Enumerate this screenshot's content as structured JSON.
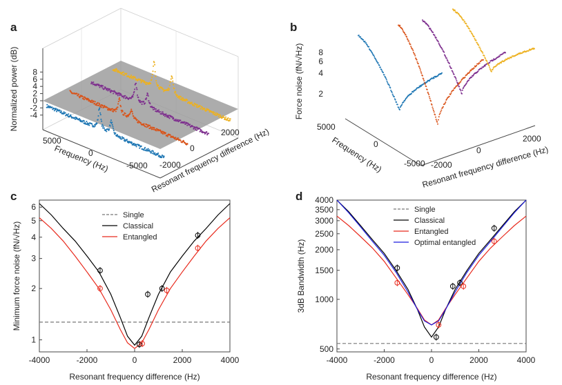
{
  "panels": {
    "a": {
      "letter": "a",
      "ylabel": "Normalized power (dB)",
      "yticks": [
        "8",
        "6",
        "4",
        "2",
        "0",
        "-2",
        "-4"
      ],
      "freq_label": "Frequency (Hz)",
      "freq_ticks": [
        "5000",
        "0",
        "-5000"
      ],
      "res_label": "Resonant frequency difference (Hz)",
      "res_ticks": [
        "2000",
        "0",
        "-2000"
      ]
    },
    "b": {
      "letter": "b",
      "ylabel": "Force noise (fN/√Hz)",
      "yticks": [
        "8",
        "6",
        "4",
        "2"
      ],
      "freq_label": "Frequency (Hz)",
      "freq_ticks": [
        "5000",
        "0",
        "-5000"
      ],
      "res_label": "Resonant frequency difference (Hz)",
      "res_ticks": [
        "2000",
        "0",
        "-2000"
      ]
    },
    "c": {
      "letter": "c"
    },
    "d": {
      "letter": "d"
    }
  },
  "colors": {
    "blue": "#1f77b4",
    "orange": "#d95319",
    "purple": "#7e2f8e",
    "gold": "#edb120",
    "black": "#000000",
    "red": "#e8291c",
    "navy": "#1a1adf",
    "gray": "#777777",
    "plane": "#9a9a9a"
  },
  "chart_data": [
    {
      "id": "c",
      "type": "line",
      "xlabel": "Resonant frequency difference (Hz)",
      "ylabel": "Minimum force noise (fN/√Hz)",
      "xlim": [
        -4000,
        4000
      ],
      "ylim": [
        0.85,
        6.6
      ],
      "yscale": "log",
      "xticks": [
        -4000,
        -2000,
        0,
        2000,
        4000
      ],
      "yticks": [
        1,
        2,
        3,
        4,
        5,
        6
      ],
      "legend": [
        "Single",
        "Classical",
        "Entangled"
      ],
      "series": [
        {
          "name": "Single",
          "style": "dashed",
          "x": [
            -4000,
            4000
          ],
          "y": [
            1.27,
            1.27
          ]
        },
        {
          "name": "Classical",
          "x": [
            -4000,
            -3500,
            -3000,
            -2500,
            -2000,
            -1500,
            -1000,
            -600,
            -300,
            0,
            300,
            600,
            1000,
            1500,
            2000,
            2500,
            3000,
            3500,
            4000
          ],
          "y": [
            6.3,
            5.4,
            4.5,
            3.8,
            3.1,
            2.5,
            1.85,
            1.35,
            1.05,
            0.93,
            1.05,
            1.35,
            1.85,
            2.5,
            3.1,
            3.8,
            4.5,
            5.4,
            6.3
          ]
        },
        {
          "name": "Entangled",
          "x": [
            -4000,
            -3500,
            -3000,
            -2500,
            -2000,
            -1500,
            -1000,
            -600,
            -300,
            0,
            300,
            600,
            1000,
            1500,
            2000,
            2500,
            3000,
            3500,
            4000
          ],
          "y": [
            5.2,
            4.5,
            3.8,
            3.1,
            2.5,
            2.0,
            1.5,
            1.15,
            0.96,
            0.89,
            0.96,
            1.15,
            1.5,
            2.0,
            2.5,
            3.1,
            3.8,
            4.5,
            5.2
          ]
        }
      ],
      "points": [
        {
          "name": "Classical",
          "x": [
            -1450,
            200,
            550,
            1150,
            2650
          ],
          "y": [
            2.55,
            0.94,
            1.85,
            2.0,
            4.1
          ]
        },
        {
          "name": "Entangled",
          "x": [
            -1450,
            320,
            1350,
            2650
          ],
          "y": [
            2.0,
            0.95,
            1.95,
            3.45
          ]
        }
      ]
    },
    {
      "id": "d",
      "type": "line",
      "xlabel": "Resonant frequency difference (Hz)",
      "ylabel": "3dB Bandwidth (Hz)",
      "xlim": [
        -4000,
        4000
      ],
      "ylim": [
        480,
        4000
      ],
      "yscale": "log",
      "xticks": [
        -4000,
        -2000,
        0,
        2000,
        4000
      ],
      "yticks": [
        500,
        1000,
        1500,
        2000,
        2500,
        3000,
        3500,
        4000
      ],
      "legend": [
        "Single",
        "Classical",
        "Entangled",
        "Optimal entangled"
      ],
      "series": [
        {
          "name": "Single",
          "style": "dashed",
          "x": [
            -4000,
            4000
          ],
          "y": [
            540,
            540
          ]
        },
        {
          "name": "Classical",
          "x": [
            -4000,
            -3500,
            -3000,
            -2500,
            -2000,
            -1500,
            -1000,
            -600,
            -300,
            0,
            300,
            600,
            1000,
            1500,
            2000,
            2500,
            3000,
            3500,
            4000
          ],
          "y": [
            4000,
            3400,
            2800,
            2300,
            1900,
            1500,
            1150,
            870,
            680,
            590,
            680,
            870,
            1150,
            1500,
            1900,
            2300,
            2800,
            3400,
            4000
          ]
        },
        {
          "name": "Entangled",
          "x": [
            -4000,
            -3500,
            -3000,
            -2500,
            -2000,
            -1500,
            -1000,
            -600,
            -300,
            0,
            300,
            600,
            1000,
            1500,
            2000,
            2500,
            3000,
            3500,
            4000
          ],
          "y": [
            3200,
            2800,
            2400,
            2050,
            1700,
            1350,
            1070,
            880,
            750,
            700,
            750,
            880,
            1070,
            1350,
            1700,
            2050,
            2400,
            2800,
            3200
          ]
        },
        {
          "name": "Optimal entangled",
          "x": [
            -4000,
            -3500,
            -3000,
            -2500,
            -2000,
            -1500,
            -1000,
            -600,
            -300,
            0,
            300,
            600,
            1000,
            1500,
            2000,
            2500,
            3000,
            3500,
            4000
          ],
          "y": [
            4000,
            3350,
            2750,
            2250,
            1850,
            1460,
            1110,
            870,
            740,
            700,
            740,
            870,
            1110,
            1460,
            1850,
            2250,
            2750,
            3350,
            4000
          ]
        }
      ],
      "points": [
        {
          "name": "Classical",
          "x": [
            -1450,
            200,
            900,
            1200,
            2650
          ],
          "y": [
            1550,
            590,
            1200,
            1260,
            2700
          ]
        },
        {
          "name": "Entangled",
          "x": [
            -1450,
            300,
            1350,
            2650
          ],
          "y": [
            1260,
            700,
            1200,
            2250
          ]
        }
      ]
    }
  ]
}
